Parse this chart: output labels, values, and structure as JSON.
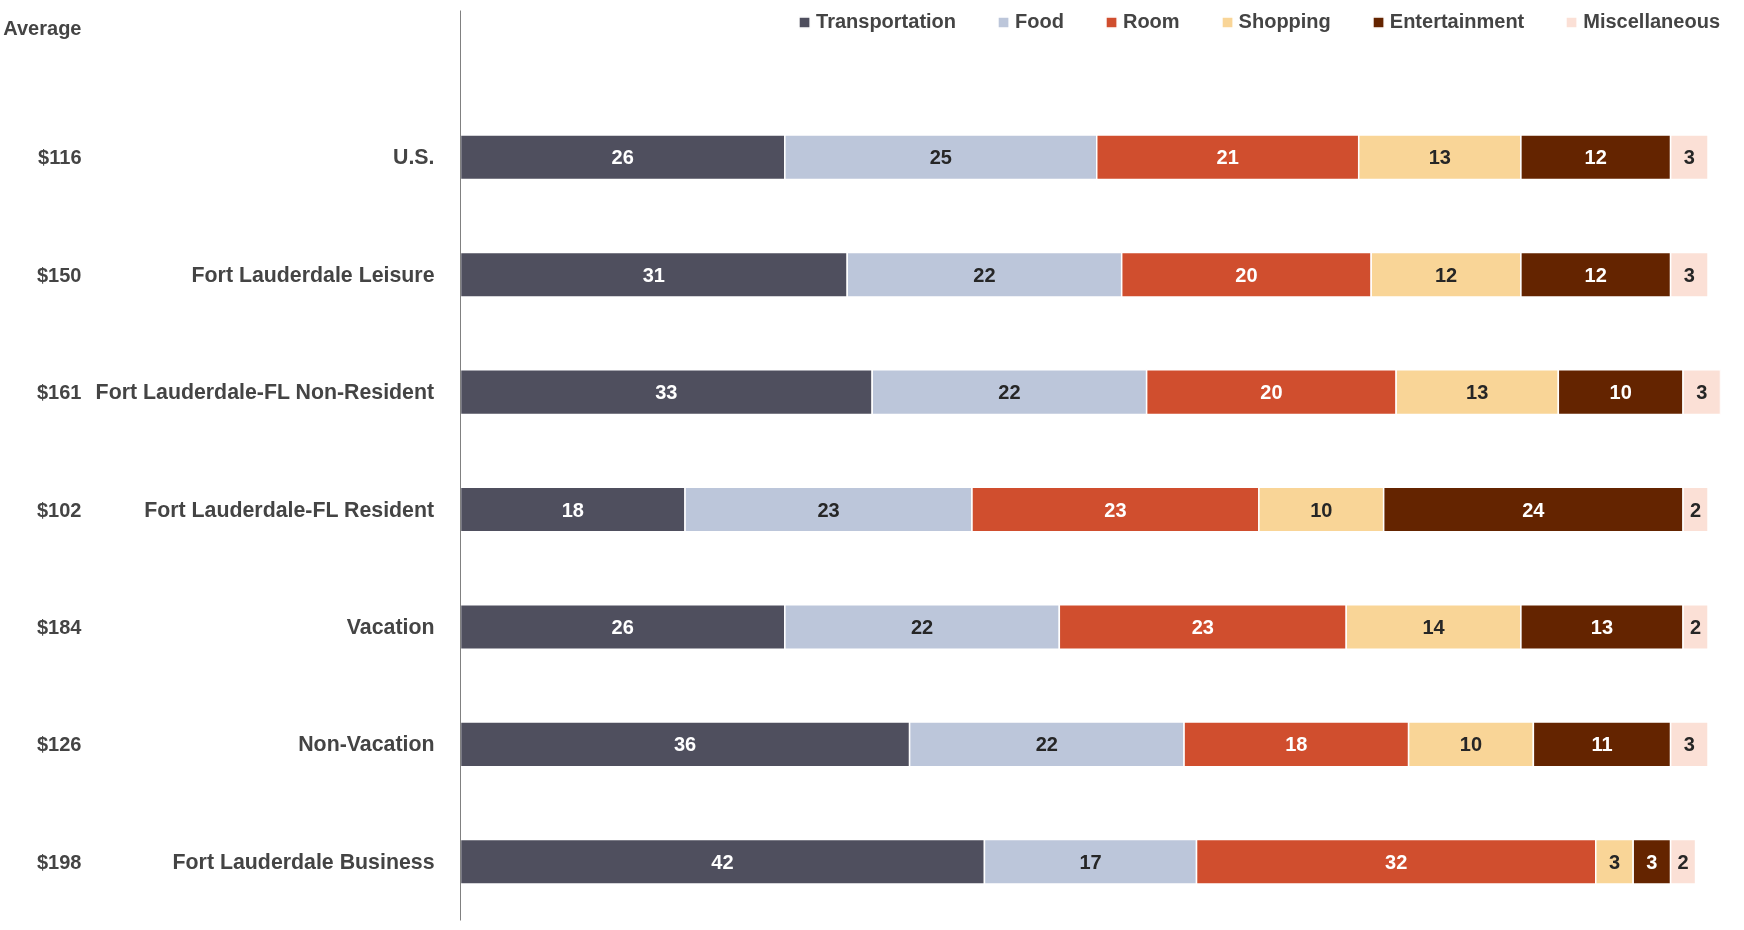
{
  "chart_data": {
    "type": "bar",
    "orientation": "horizontal",
    "stacked": true,
    "data_labels": true,
    "legend": "top",
    "grid": false,
    "tick_labels": "y",
    "xlim": [
      0,
      101
    ],
    "categories": [
      "U.S.",
      "Fort Lauderdale Leisure",
      "Fort Lauderdale-FL Non-Resident",
      "Fort Lauderdale-FL Resident",
      "Vacation",
      "Non-Vacation",
      "Fort Lauderdale Business"
    ],
    "series": [
      {
        "name": "Transportation",
        "color": "#4f4f5e",
        "values": [
          26,
          31,
          33,
          18,
          26,
          36,
          42
        ]
      },
      {
        "name": "Food",
        "color": "#bcc6da",
        "values": [
          25,
          22,
          22,
          23,
          22,
          22,
          17
        ]
      },
      {
        "name": "Room",
        "color": "#d04e2e",
        "values": [
          21,
          20,
          20,
          23,
          23,
          18,
          32
        ]
      },
      {
        "name": "Shopping",
        "color": "#f9d597",
        "values": [
          13,
          12,
          13,
          10,
          14,
          10,
          3
        ]
      },
      {
        "name": "Entertainment",
        "color": "#642400",
        "values": [
          12,
          12,
          10,
          24,
          13,
          11,
          3
        ]
      },
      {
        "name": "Miscellaneous",
        "color": "#fbe0d6",
        "values": [
          3,
          3,
          3,
          2,
          2,
          3,
          2
        ]
      }
    ],
    "annotations": [
      "Average",
      "$116",
      "$150",
      "$161",
      "$102",
      "$184",
      "$126",
      "$198"
    ]
  }
}
